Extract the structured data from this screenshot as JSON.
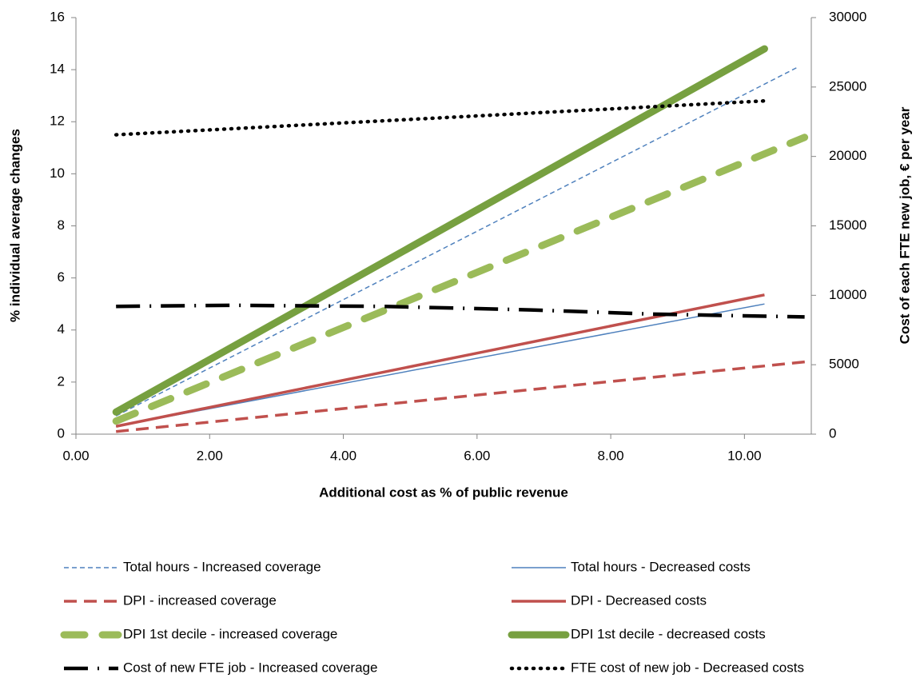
{
  "chart_data": {
    "type": "line",
    "x_label": "Additional cost as % of public revenue",
    "y_label": "% individual average changes",
    "y2_label": "Cost of each FTE new job, € per year",
    "xlim": [
      0,
      11
    ],
    "xticks": [
      {
        "value": 0,
        "label": "0.00"
      },
      {
        "value": 2,
        "label": "2.00"
      },
      {
        "value": 4,
        "label": "4.00"
      },
      {
        "value": 6,
        "label": "6.00"
      },
      {
        "value": 8,
        "label": "8.00"
      },
      {
        "value": 10,
        "label": "10.00"
      }
    ],
    "ylim": [
      0,
      16
    ],
    "yticks": [
      0,
      2,
      4,
      6,
      8,
      10,
      12,
      14,
      16
    ],
    "y2lim": [
      0,
      30000
    ],
    "y2ticks": [
      0,
      5000,
      10000,
      15000,
      20000,
      25000,
      30000
    ],
    "grid": false,
    "legend": "bottom",
    "series": [
      {
        "name": "Total hours - Increased coverage",
        "color": "#4f81bd",
        "line_style": "dashed-thin",
        "x": [
          0.6,
          10.8
        ],
        "values": [
          0.7,
          14.1
        ]
      },
      {
        "name": "Total hours - Decreased costs",
        "color": "#4f81bd",
        "line_style": "solid-thin",
        "x": [
          0.6,
          10.3
        ],
        "values": [
          0.3,
          5.0
        ]
      },
      {
        "name": "DPI - increased coverage",
        "color": "#c0504d",
        "line_style": "dashed",
        "x": [
          0.6,
          11
        ],
        "values": [
          0.1,
          2.8
        ]
      },
      {
        "name": "DPI - Decreased costs",
        "color": "#c0504d",
        "line_style": "solid",
        "x": [
          0.6,
          10.3
        ],
        "values": [
          0.3,
          5.35
        ]
      },
      {
        "name": "DPI 1st decile - increased coverage",
        "color": "#9bbb59",
        "line_style": "dashed-thick",
        "x": [
          0.6,
          10.9
        ],
        "values": [
          0.5,
          11.4
        ]
      },
      {
        "name": "DPI 1st decile - decreased costs",
        "color": "#77a040",
        "line_style": "solid-thick",
        "x": [
          0.6,
          10.3
        ],
        "values": [
          0.85,
          14.8
        ]
      },
      {
        "name": "Cost of new FTE job - Increased coverage",
        "color": "#000000",
        "line_style": "dash-dot",
        "axis": "y2",
        "x": [
          0.6,
          2.3,
          4.6,
          6.8,
          8.6,
          10.9
        ],
        "values": [
          9200,
          9280,
          9200,
          8950,
          8650,
          8440
        ]
      },
      {
        "name": "FTE cost of new job - Decreased costs",
        "color": "#000000",
        "line_style": "dotted",
        "axis": "y2",
        "x": [
          0.6,
          10.3
        ],
        "values": [
          21560,
          24000
        ]
      }
    ]
  }
}
